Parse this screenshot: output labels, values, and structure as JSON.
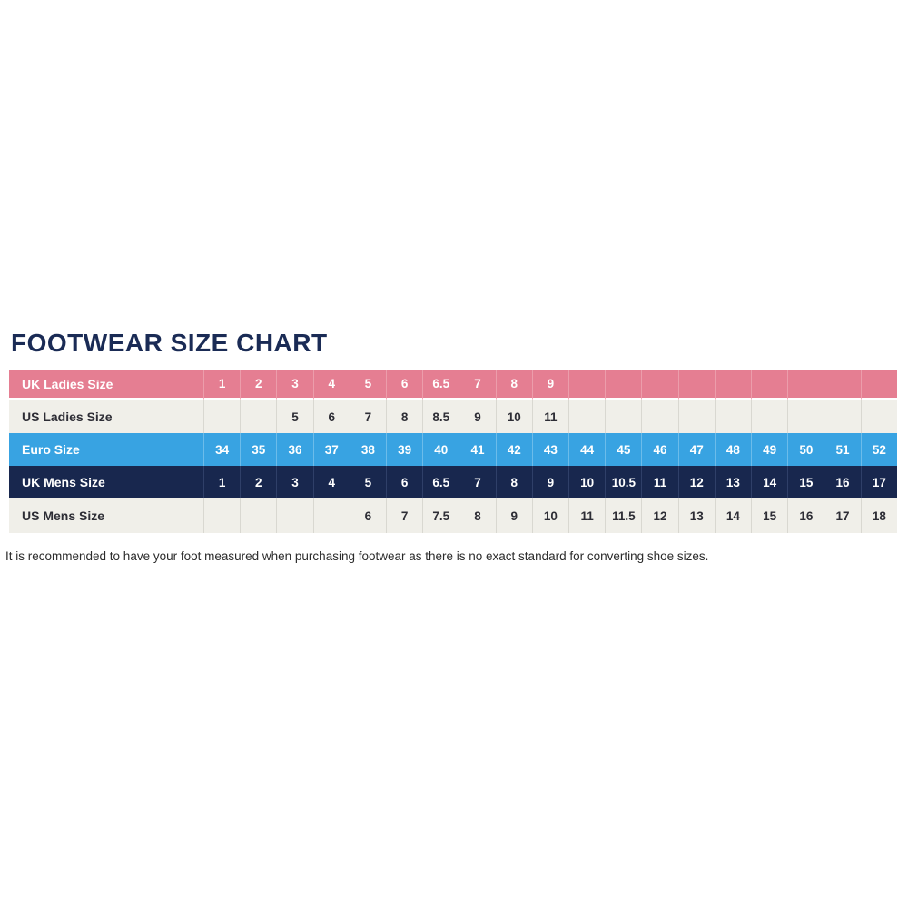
{
  "page": {
    "title": "FOOTWEAR SIZE CHART",
    "footnote": "It is recommended to have your foot measured when purchasing footwear as there is no exact standard for converting shoe sizes."
  },
  "colors": {
    "title_navy": "#1a2b55",
    "row_pink": "#e57e92",
    "row_cream": "#f0efe9",
    "row_blue": "#38a3e2",
    "row_navy": "#18274e",
    "text_dark": "#2d2d35",
    "text_white": "#ffffff"
  },
  "chart_data": {
    "type": "table",
    "title": "FOOTWEAR SIZE CHART",
    "columns": 19,
    "rows": [
      {
        "label": "UK Ladies Size",
        "style": "pink",
        "values": [
          "1",
          "2",
          "3",
          "4",
          "5",
          "6",
          "6.5",
          "7",
          "8",
          "9",
          "",
          "",
          "",
          "",
          "",
          "",
          "",
          "",
          ""
        ]
      },
      {
        "label": "US Ladies Size",
        "style": "cream",
        "values": [
          "",
          "",
          "5",
          "6",
          "7",
          "8",
          "8.5",
          "9",
          "10",
          "11",
          "",
          "",
          "",
          "",
          "",
          "",
          "",
          "",
          ""
        ]
      },
      {
        "label": "Euro Size",
        "style": "blue",
        "values": [
          "34",
          "35",
          "36",
          "37",
          "38",
          "39",
          "40",
          "41",
          "42",
          "43",
          "44",
          "45",
          "46",
          "47",
          "48",
          "49",
          "50",
          "51",
          "52"
        ]
      },
      {
        "label": "UK Mens Size",
        "style": "navy",
        "values": [
          "1",
          "2",
          "3",
          "4",
          "5",
          "6",
          "6.5",
          "7",
          "8",
          "9",
          "10",
          "10.5",
          "11",
          "12",
          "13",
          "14",
          "15",
          "16",
          "17"
        ]
      },
      {
        "label": "US Mens Size",
        "style": "cream2",
        "values": [
          "",
          "",
          "",
          "",
          "6",
          "7",
          "7.5",
          "8",
          "9",
          "10",
          "11",
          "11.5",
          "12",
          "13",
          "14",
          "15",
          "16",
          "17",
          "18"
        ]
      }
    ],
    "footnote": "It is recommended to have your foot measured when purchasing footwear as there is no exact standard for converting shoe sizes."
  }
}
